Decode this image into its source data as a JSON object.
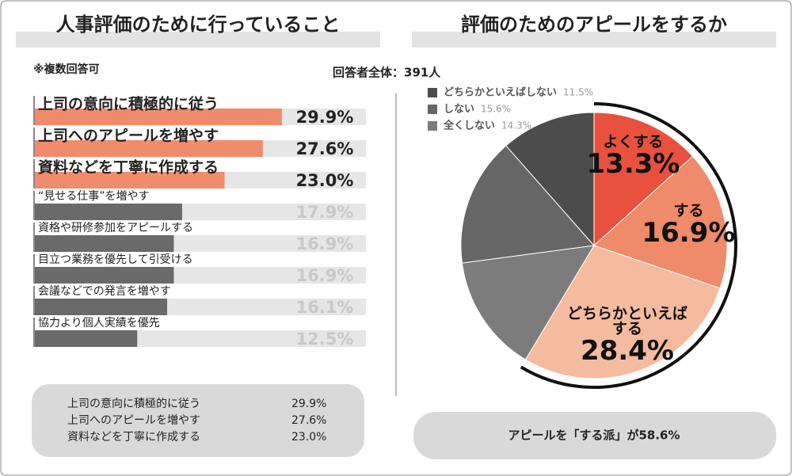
{
  "chart_data": [
    {
      "type": "bar",
      "orientation": "horizontal",
      "title": "人事評価のために行っていること",
      "note": "※複数回答可",
      "categories": [
        "上司の意向に積極的に従う",
        "上司へのアピールを増やす",
        "資料などを丁寧に作成する",
        "“見せる仕事”を増やす",
        "資格や研修参加をアピールする",
        "目立つ業務を優先して引受ける",
        "会議などでの発言を増やす",
        "協力より個人実績を優先"
      ],
      "values": [
        29.9,
        27.6,
        23.0,
        17.9,
        16.9,
        16.9,
        16.1,
        12.5
      ],
      "value_labels": [
        "29.9%",
        "27.6%",
        "23.0%",
        "17.9%",
        "16.9%",
        "16.9%",
        "16.1%",
        "12.5%"
      ],
      "colors": [
        "#f08b6c",
        "#f08b6c",
        "#f08b6c",
        "#6a6a6a",
        "#6a6a6a",
        "#6a6a6a",
        "#6a6a6a",
        "#6a6a6a"
      ],
      "label_colors": [
        "#222222",
        "#222222",
        "#222222",
        "#c8c8c8",
        "#c8c8c8",
        "#c8c8c8",
        "#c8c8c8",
        "#c8c8c8"
      ],
      "xlim": [
        0,
        40
      ]
    },
    {
      "type": "pie",
      "title": "評価のためのアピールをするか",
      "subtitle": "回答者全体：391人",
      "categories": [
        "よくする",
        "する",
        "どちらかといえばする",
        "全くしない",
        "しない",
        "どちらかといえばしない"
      ],
      "values": [
        13.3,
        16.9,
        28.4,
        14.3,
        15.6,
        11.5
      ],
      "value_labels": [
        "13.3%",
        "16.9%",
        "28.4%",
        "14.3%",
        "15.6%",
        "11.5%"
      ],
      "colors": [
        "#e8513e",
        "#ef8a6a",
        "#f5bb9f",
        "#7c7c7c",
        "#666666",
        "#4c4c4c"
      ],
      "label_placement": [
        "inside",
        "inside",
        "inside",
        "legend",
        "legend",
        "legend"
      ]
    }
  ],
  "summary": {
    "left": {
      "rows": [
        {
          "label": "上司の意向に積極的に従う",
          "value": "29.9%"
        },
        {
          "label": "上司へのアピールを増やす",
          "value": "27.6%"
        },
        {
          "label": "資料などを丁寧に作成する",
          "value": "23.0%"
        }
      ]
    },
    "right": {
      "text": "アピールを「する派」が58.6%"
    }
  }
}
